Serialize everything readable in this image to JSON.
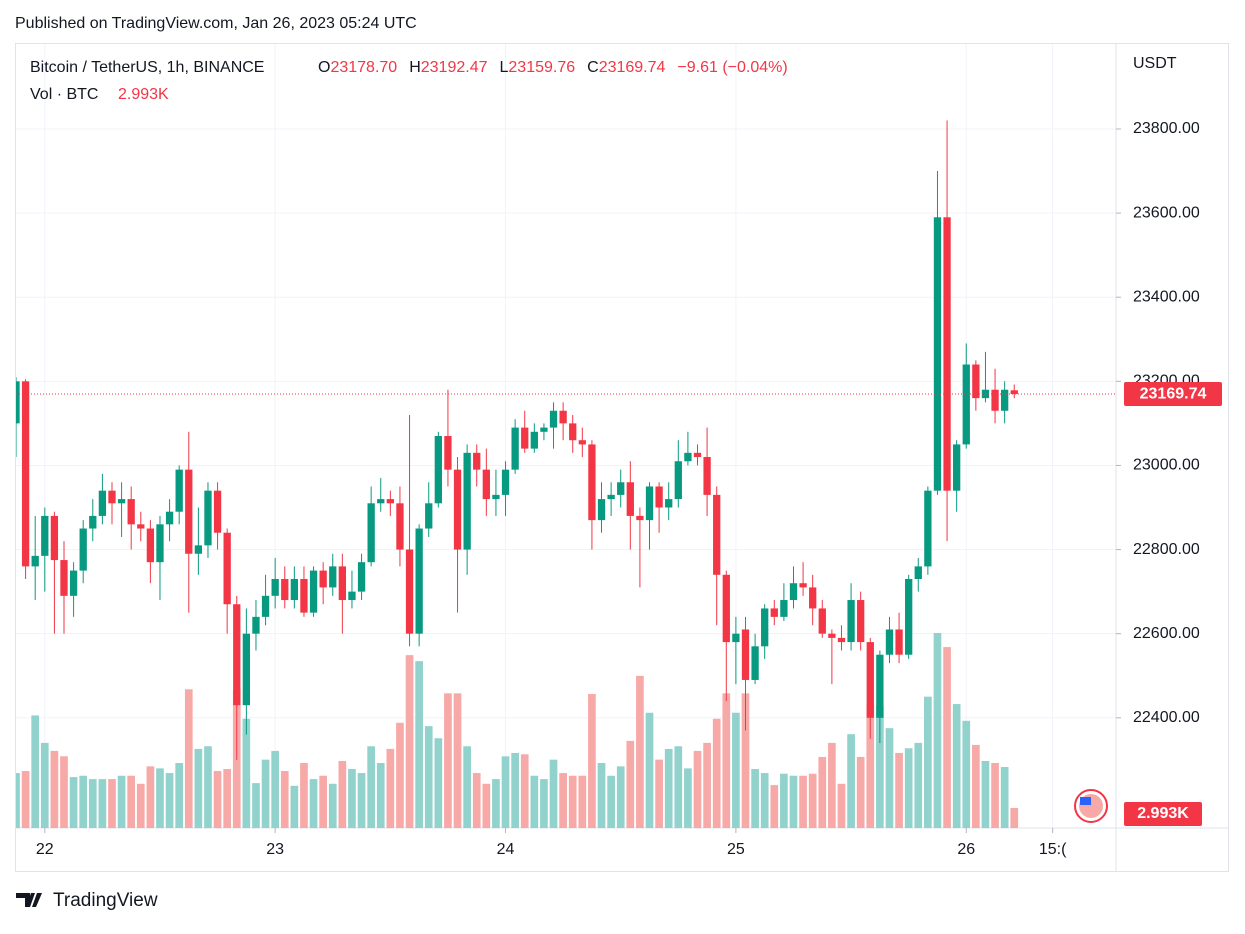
{
  "published": "Published on TradingView.com, Jan 26, 2023 05:24 UTC",
  "brand": "TradingView",
  "chart_data": {
    "type": "candlestick",
    "symbol": "Bitcoin / TetherUS, 1h, BINANCE",
    "legend": [
      {
        "key": "O",
        "value": "23178.70"
      },
      {
        "key": "H",
        "value": "23192.47"
      },
      {
        "key": "L",
        "value": "23159.76"
      },
      {
        "key": "C",
        "value": "23169.74"
      }
    ],
    "change": "−9.61 (−0.04%)",
    "volume_title": "Vol · BTC",
    "currency": "USDT",
    "up_color": "#089981",
    "down_color": "#f23645",
    "volume_up_color": "#92d2cc",
    "volume_down_color": "#f7a9a7",
    "grid": true,
    "open": [
      23100,
      23200,
      22760,
      22785,
      22880,
      22775,
      22690,
      22750,
      22850,
      22880,
      22940,
      22910,
      22920,
      22860,
      22850,
      22770,
      22860,
      22890,
      22990,
      22790,
      22810,
      22940,
      22840,
      22670,
      22430,
      22600,
      22640,
      22690,
      22730,
      22680,
      22730,
      22650,
      22750,
      22710,
      22760,
      22680,
      22700,
      22770,
      22910,
      22920,
      22910,
      22800,
      22600,
      22850,
      22910,
      23070,
      22990,
      22800,
      23030,
      22990,
      22920,
      22930,
      22990,
      23090,
      23040,
      23080,
      23090,
      23130,
      23100,
      23060,
      23050,
      22870,
      22920,
      22930,
      22960,
      22880,
      22870,
      22950,
      22900,
      22920,
      23010,
      23030,
      23020,
      22930,
      22740,
      22580,
      22610,
      22490,
      22570,
      22660,
      22640,
      22680,
      22720,
      22710,
      22660,
      22600,
      22590,
      22580,
      22680,
      22580,
      22400,
      22550,
      22610,
      22550,
      22730,
      22760,
      22940,
      23590,
      22940,
      23050,
      23240,
      23160,
      23180,
      23130,
      23178.7
    ],
    "high": [
      23210,
      23205,
      22880,
      22900,
      22890,
      22820,
      22770,
      22870,
      22920,
      22980,
      22960,
      22960,
      22950,
      22890,
      22870,
      22880,
      22920,
      23000,
      23080,
      22900,
      22960,
      22960,
      22850,
      22690,
      22660,
      22680,
      22740,
      22780,
      22760,
      22760,
      22760,
      22760,
      22770,
      22790,
      22790,
      22750,
      22790,
      22950,
      22970,
      22940,
      22950,
      23120,
      22860,
      22960,
      23080,
      23180,
      23020,
      23050,
      23050,
      23040,
      22990,
      23010,
      23110,
      23130,
      23100,
      23100,
      23150,
      23150,
      23120,
      23090,
      23060,
      22960,
      22960,
      22990,
      23010,
      22900,
      22960,
      22960,
      22960,
      23060,
      23080,
      23050,
      23090,
      22950,
      22750,
      22640,
      22640,
      22600,
      22670,
      22680,
      22720,
      22760,
      22770,
      22740,
      22680,
      22610,
      22620,
      22720,
      22700,
      22590,
      22560,
      22640,
      22650,
      22740,
      22780,
      22950,
      23700,
      23820,
      23060,
      23290,
      23250,
      23270,
      23230,
      23200,
      23192.47
    ],
    "low": [
      23020,
      22730,
      22680,
      22700,
      22600,
      22600,
      22640,
      22720,
      22820,
      22860,
      22860,
      22830,
      22800,
      22820,
      22720,
      22680,
      22820,
      22860,
      22650,
      22740,
      22780,
      22800,
      22600,
      22300,
      22360,
      22560,
      22620,
      22660,
      22660,
      22660,
      22640,
      22640,
      22670,
      22690,
      22600,
      22660,
      22680,
      22760,
      22890,
      22880,
      22760,
      22570,
      22570,
      22830,
      22900,
      22950,
      22650,
      22740,
      22950,
      22880,
      22880,
      22880,
      22980,
      23030,
      23030,
      23060,
      23040,
      23060,
      23030,
      23020,
      22800,
      22840,
      22880,
      22900,
      22800,
      22710,
      22800,
      22840,
      22870,
      22900,
      23000,
      23000,
      22880,
      22620,
      22440,
      22480,
      22370,
      22480,
      22540,
      22620,
      22630,
      22660,
      22690,
      22620,
      22590,
      22480,
      22560,
      22560,
      22560,
      22350,
      22340,
      22530,
      22530,
      22540,
      22700,
      22740,
      22930,
      22820,
      22890,
      23040,
      23130,
      23150,
      23100,
      23100,
      23159.76
    ],
    "close": [
      23200,
      22760,
      22785,
      22880,
      22775,
      22690,
      22750,
      22850,
      22880,
      22940,
      22910,
      22920,
      22860,
      22850,
      22770,
      22860,
      22890,
      22990,
      22790,
      22810,
      22940,
      22840,
      22670,
      22430,
      22600,
      22640,
      22690,
      22730,
      22680,
      22730,
      22650,
      22750,
      22710,
      22760,
      22680,
      22700,
      22770,
      22910,
      22920,
      22910,
      22800,
      22600,
      22850,
      22910,
      23070,
      22990,
      22800,
      23030,
      22990,
      22920,
      22930,
      22990,
      23090,
      23040,
      23080,
      23090,
      23130,
      23100,
      23060,
      23050,
      22870,
      22920,
      22930,
      22960,
      22880,
      22870,
      22950,
      22900,
      22920,
      23010,
      23030,
      23020,
      22930,
      22740,
      22580,
      22600,
      22490,
      22570,
      22660,
      22640,
      22680,
      22720,
      22710,
      22660,
      22600,
      22590,
      22580,
      22680,
      22580,
      22400,
      22550,
      22610,
      22550,
      22730,
      22760,
      22940,
      23590,
      22940,
      23050,
      23240,
      23160,
      23180,
      23130,
      23180,
      23169.74
    ],
    "volume": {
      "values": [
        8.2,
        8.5,
        16.8,
        12.7,
        11.5,
        10.7,
        7.6,
        7.8,
        7.3,
        7.3,
        7.3,
        7.8,
        7.8,
        6.6,
        9.2,
        8.9,
        8.2,
        9.7,
        20.7,
        11.8,
        12.2,
        8.5,
        8.8,
        20.7,
        16.3,
        6.7,
        10.2,
        11.5,
        8.5,
        6.3,
        9.7,
        7.3,
        7.8,
        6.6,
        10.0,
        8.8,
        8.2,
        12.2,
        9.7,
        11.8,
        15.7,
        25.8,
        24.9,
        15.2,
        13.4,
        20.1,
        20.1,
        12.2,
        8.2,
        6.6,
        7.3,
        10.7,
        11.2,
        11.0,
        7.8,
        7.3,
        10.2,
        8.2,
        7.8,
        7.8,
        20.0,
        9.7,
        7.8,
        9.2,
        13.0,
        22.7,
        17.2,
        10.2,
        11.8,
        12.2,
        8.9,
        11.5,
        12.7,
        16.3,
        20.1,
        17.2,
        20.1,
        8.8,
        8.2,
        6.4,
        8.1,
        7.8,
        7.8,
        8.1,
        10.6,
        12.7,
        6.6,
        14.0,
        10.6,
        18.4,
        18.2,
        14.9,
        11.2,
        11.9,
        12.7,
        19.6,
        29.1,
        27.0,
        18.5,
        16.0,
        12.4,
        10.0,
        9.7,
        9.1,
        2.993
      ],
      "value_labels": [
        null,
        null,
        null,
        null,
        null,
        null,
        null,
        null,
        null,
        null,
        null,
        null,
        null,
        null,
        null,
        null,
        null,
        null,
        null,
        null,
        null,
        null,
        null,
        null,
        null,
        null,
        null,
        null,
        null,
        null,
        null,
        null,
        null,
        null,
        null,
        null,
        null,
        null,
        null,
        null,
        null,
        null,
        null,
        null,
        null,
        null,
        null,
        null,
        null,
        null,
        null,
        null,
        null,
        null,
        null,
        null,
        null,
        null,
        null,
        null,
        null,
        null,
        null,
        null,
        null,
        null,
        null,
        null,
        null,
        null,
        null,
        null,
        null,
        null,
        null,
        null,
        null,
        null,
        null,
        null,
        null,
        null,
        null,
        null,
        null,
        null,
        null,
        null,
        null,
        null,
        null,
        null,
        null,
        null,
        null,
        null,
        null,
        null,
        null,
        null,
        null,
        null,
        null,
        null,
        "2.993K"
      ],
      "lim": [
        0,
        117
      ]
    },
    "xlim": [
      0,
      114.6
    ],
    "xticks": [
      {
        "value": 3,
        "label": "22"
      },
      {
        "value": 27,
        "label": "23"
      },
      {
        "value": 51,
        "label": "24"
      },
      {
        "value": 75,
        "label": "25"
      },
      {
        "value": 99,
        "label": "26"
      },
      {
        "value": 108,
        "label": "15:("
      }
    ],
    "ylim": [
      22138,
      24002
    ],
    "yticks": [
      {
        "value": 22400,
        "label": "22400.00"
      },
      {
        "value": 22600,
        "label": "22600.00"
      },
      {
        "value": 22800,
        "label": "22800.00"
      },
      {
        "value": 23000,
        "label": "23000.00"
      },
      {
        "value": 23200,
        "label": "23200.00"
      },
      {
        "value": 23400,
        "label": "23400.00"
      },
      {
        "value": 23600,
        "label": "23600.00"
      },
      {
        "value": 23800,
        "label": "23800.00"
      }
    ]
  }
}
